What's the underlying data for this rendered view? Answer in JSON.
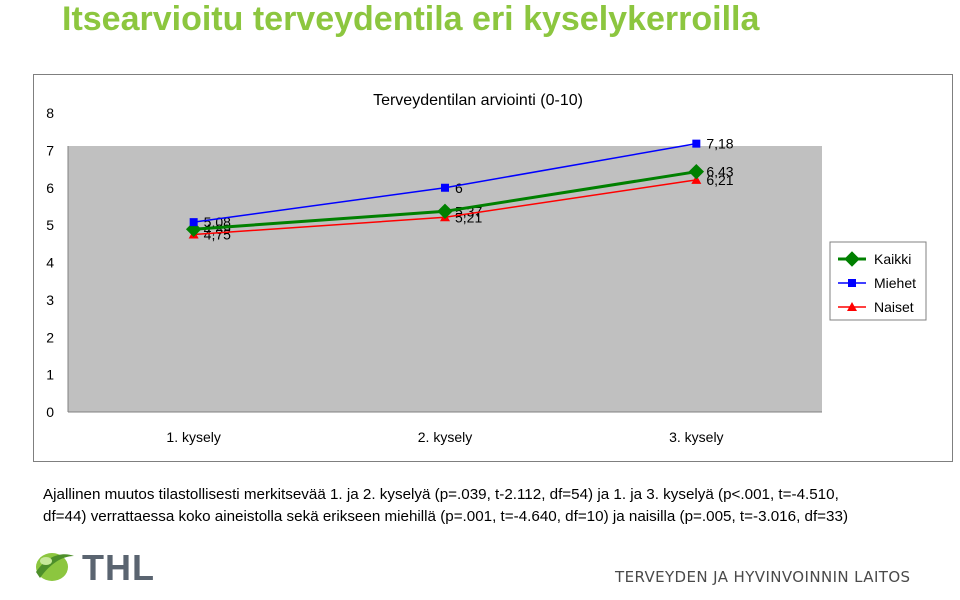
{
  "slide": {
    "title": "Itsearvioitu terveydentila eri kyselykerroilla",
    "note_line1": "Ajallinen muutos tilastollisesti merkitsevää 1. ja 2. kyselyä (p=.039, t-2.112, df=54) ja 1. ja 3. kyselyä (p<.001, t=-4.510,",
    "note_line2": "df=44) verrattaessa koko aineistolla sekä erikseen miehillä (p=.001, t=-4.640, df=10) ja naisilla (p=.005, t=-3.016, df=33)",
    "logo_text": "THL",
    "org_name": "TERVEYDEN JA HYVINVOINNIN LAITOS"
  },
  "chart_data": {
    "type": "line",
    "title": "Terveydentilan arviointi (0-10)",
    "categories": [
      "1. kysely",
      "2. kysely",
      "3. kysely"
    ],
    "ylim": [
      0,
      8
    ],
    "yticks": [
      "0",
      "1",
      "2",
      "3",
      "4",
      "5",
      "6",
      "7",
      "8"
    ],
    "grid": false,
    "plot_background": "#c0c0c0",
    "legend_position": "right",
    "series": [
      {
        "name": "Kaikki",
        "values": [
          4.89,
          5.37,
          6.43
        ],
        "labels": [
          "4,89",
          "5,37",
          "6,43"
        ],
        "color": "#008000",
        "marker": "diamond"
      },
      {
        "name": "Miehet",
        "values": [
          5.08,
          6,
          7.18
        ],
        "labels": [
          "5,08",
          "6",
          "7,18"
        ],
        "color": "#0000ff",
        "marker": "square"
      },
      {
        "name": "Naiset",
        "values": [
          4.75,
          5.21,
          6.21
        ],
        "labels": [
          "4,75",
          "5,21",
          "6,21"
        ],
        "color": "#ff0000",
        "marker": "triangle"
      }
    ]
  }
}
